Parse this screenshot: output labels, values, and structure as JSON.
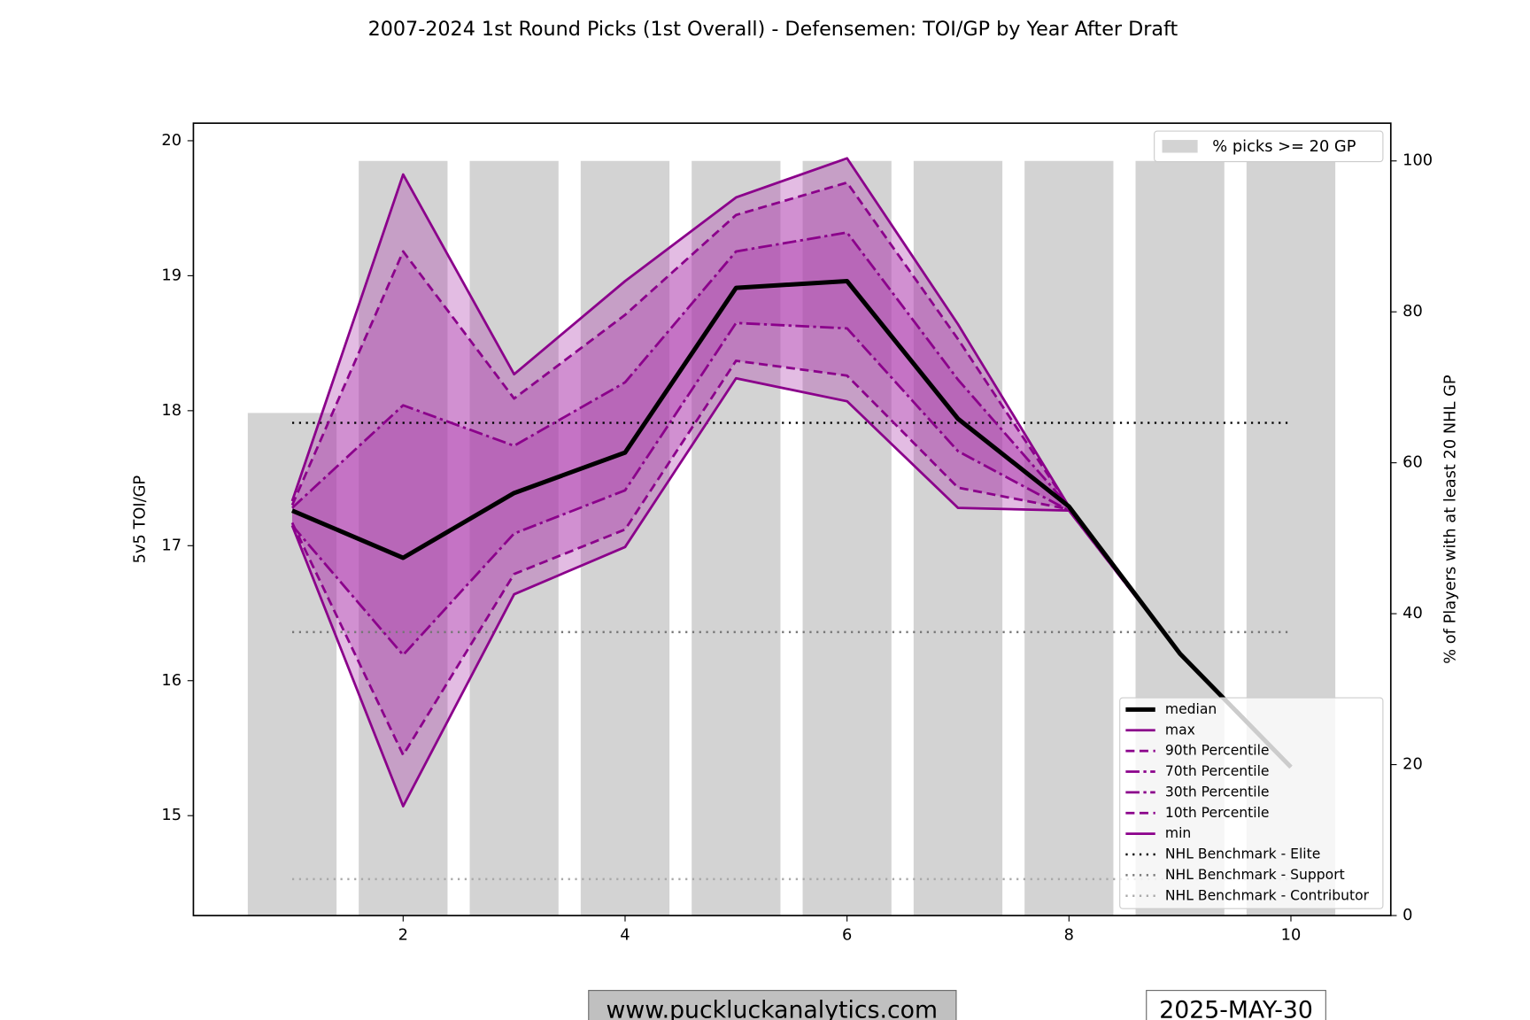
{
  "chart_data": {
    "type": "line",
    "title": "2007-2024 1st Round Picks (1st Overall) - Defensemen: TOI/GP by Year After Draft",
    "y_label": "5v5 TOI/GP",
    "y2_label": "% of Players with at least 20 NHL GP",
    "x": [
      1,
      2,
      3,
      4,
      5,
      6,
      7,
      8,
      9,
      10
    ],
    "xlim": [
      0.11,
      10.9
    ],
    "xticks": [
      2,
      4,
      6,
      8,
      10
    ],
    "ylim": [
      14.26,
      20.13
    ],
    "yticks": [
      15,
      16,
      17,
      18,
      19,
      20
    ],
    "y2lim": [
      0,
      105
    ],
    "y2ticks": [
      0,
      20,
      40,
      60,
      80,
      100
    ],
    "bars": {
      "name": "% picks >= 20 GP",
      "color": "#d3d3d3",
      "axis": "y2",
      "values": [
        66.6,
        100,
        100,
        100,
        100,
        100,
        100,
        100,
        100,
        100
      ]
    },
    "series": [
      {
        "name": "median",
        "color": "#000000",
        "style": "solid",
        "width": 4.5,
        "values": [
          17.26,
          16.91,
          17.39,
          17.69,
          18.91,
          18.96,
          17.94,
          17.29,
          16.2,
          15.36
        ]
      },
      {
        "name": "max",
        "color": "#8b008b",
        "style": "solid",
        "width": 2.5,
        "values": [
          17.33,
          19.75,
          18.27,
          18.96,
          19.58,
          19.87,
          18.64,
          17.29,
          16.2,
          15.36
        ]
      },
      {
        "name": "90th Percentile",
        "color": "#8b008b",
        "style": "dashed",
        "width": 2.5,
        "values": [
          17.3,
          19.18,
          18.09,
          18.71,
          19.45,
          19.69,
          18.53,
          17.29,
          16.2,
          15.36
        ]
      },
      {
        "name": "70th Percentile",
        "color": "#8b008b",
        "style": "dashdot",
        "width": 2.5,
        "values": [
          17.28,
          18.04,
          17.74,
          18.21,
          19.18,
          19.32,
          18.23,
          17.29,
          16.2,
          15.36
        ]
      },
      {
        "name": "30th Percentile",
        "color": "#8b008b",
        "style": "dashdot",
        "width": 2.5,
        "values": [
          17.15,
          16.19,
          17.09,
          17.41,
          18.65,
          18.61,
          17.7,
          17.26,
          16.2,
          15.36
        ]
      },
      {
        "name": "10th Percentile",
        "color": "#8b008b",
        "style": "dashed",
        "width": 2.5,
        "values": [
          17.17,
          15.45,
          16.79,
          17.12,
          18.37,
          18.26,
          17.43,
          17.27,
          16.2,
          15.36
        ]
      },
      {
        "name": "min",
        "color": "#8b008b",
        "style": "solid",
        "width": 2.5,
        "values": [
          17.15,
          15.07,
          16.64,
          16.99,
          18.24,
          18.07,
          17.28,
          17.26,
          16.2,
          15.36
        ]
      }
    ],
    "bands": [
      [
        "max",
        "min"
      ],
      [
        "90th Percentile",
        "10th Percentile"
      ],
      [
        "70th Percentile",
        "30th Percentile"
      ]
    ],
    "band_color": "#b040b0",
    "benchmarks": [
      {
        "name": "NHL Benchmark - Elite",
        "value": 17.91,
        "color": "#000000"
      },
      {
        "name": "NHL Benchmark - Support",
        "value": 16.36,
        "color": "#777777"
      },
      {
        "name": "NHL Benchmark - Contributor",
        "value": 14.53,
        "color": "#aaaaaa"
      }
    ],
    "legend": "lower right",
    "bar_legend": "upper right"
  },
  "footer": {
    "website": "www.puckluckanalytics.com",
    "date": "2025-MAY-30"
  }
}
